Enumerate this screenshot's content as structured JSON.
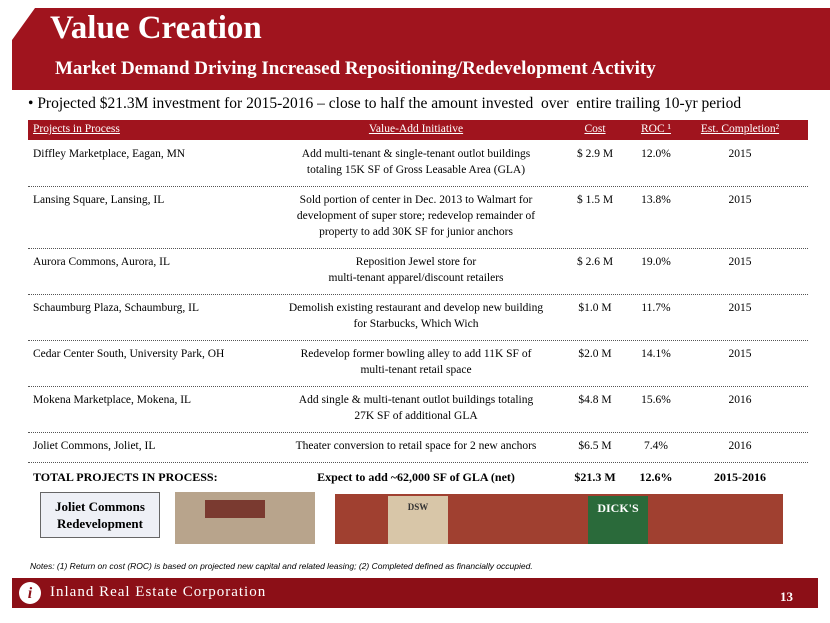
{
  "header": {
    "title": "Value Creation",
    "subtitle": "Market Demand Driving Increased Repositioning/Redevelopment Activity"
  },
  "bullet": "Projected $21.3M investment for 2015-2016 – close to half the amount invested  over  entire trailing 10-yr period",
  "table": {
    "columns": [
      "Projects in Process",
      "Value-Add Initiative",
      "Cost",
      "ROC ¹",
      "Est. Completion²"
    ],
    "rows": [
      [
        [
          "Diffley Marketplace, Eagan, MN"
        ],
        [
          "Add multi-tenant & single-tenant outlot buildings",
          "totaling 15K SF of Gross Leasable Area (GLA)"
        ],
        [
          "$ 2.9 M"
        ],
        [
          "12.0%"
        ],
        [
          "2015"
        ]
      ],
      [
        [
          "Lansing Square, Lansing, IL"
        ],
        [
          "Sold portion of center in Dec. 2013 to Walmart for",
          "development of super store; redevelop remainder of",
          "property to add 30K SF for junior anchors"
        ],
        [
          "$ 1.5 M"
        ],
        [
          "13.8%"
        ],
        [
          "2015"
        ]
      ],
      [
        [
          "Aurora Commons, Aurora, IL"
        ],
        [
          "Reposition Jewel store for",
          "multi-tenant apparel/discount retailers"
        ],
        [
          "$ 2.6 M"
        ],
        [
          "19.0%"
        ],
        [
          "2015"
        ]
      ],
      [
        [
          "Schaumburg Plaza, Schaumburg, IL"
        ],
        [
          "Demolish existing restaurant and develop new building",
          "for Starbucks, Which Wich"
        ],
        [
          "$1.0 M"
        ],
        [
          "11.7%"
        ],
        [
          "2015"
        ]
      ],
      [
        [
          "Cedar Center South, University Park, OH"
        ],
        [
          "Redevelop former bowling alley to add 11K SF of",
          "multi-tenant retail space"
        ],
        [
          "$2.0 M"
        ],
        [
          "14.1%"
        ],
        [
          "2015"
        ]
      ],
      [
        [
          "Mokena Marketplace, Mokena, IL"
        ],
        [
          "Add single & multi-tenant outlot buildings totaling",
          "27K SF of additional GLA"
        ],
        [
          "$4.8 M"
        ],
        [
          "15.6%"
        ],
        [
          "2016"
        ]
      ],
      [
        [
          "Joliet Commons, Joliet, IL"
        ],
        [
          "Theater conversion to retail space for 2 new anchors"
        ],
        [
          "$6.5 M"
        ],
        [
          "7.4%"
        ],
        [
          "2016"
        ]
      ]
    ],
    "total": [
      "TOTAL PROJECTS IN PROCESS:",
      "Expect to add ~62,000  SF of GLA (net)",
      "$21.3 M",
      "12.6%",
      "2015-2016"
    ]
  },
  "callout": "Joliet Commons Redevelopment",
  "images": {
    "sign1": "DSW",
    "sign2": "DICK'S"
  },
  "notes": "Notes: (1)  Return on cost (ROC) is based on projected new capital and related leasing; (2) Completed defined as financially occupied.",
  "footer": {
    "company": "Inland Real Estate Corporation",
    "page": "13"
  }
}
